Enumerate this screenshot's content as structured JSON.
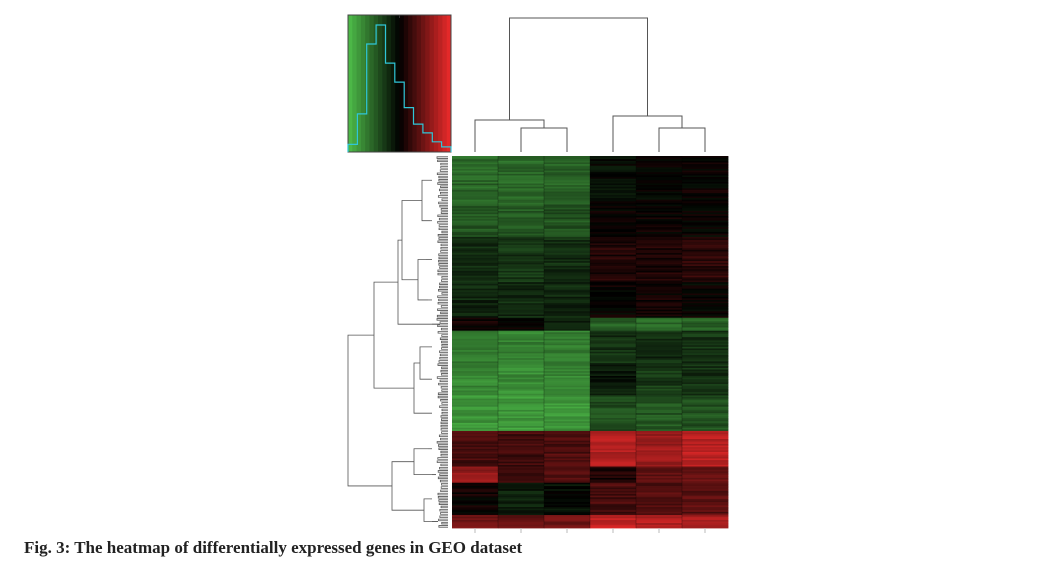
{
  "caption": "Fig. 3: The heatmap of differentially expressed genes in GEO dataset",
  "chart_data": {
    "type": "heatmap",
    "title": "",
    "xlabel": "",
    "ylabel": "",
    "color_scale": {
      "low": "#4fbf4a",
      "mid": "#000000",
      "high": "#ee2b2b"
    },
    "value_range": [
      -4,
      4
    ],
    "n_samples": 6,
    "column_dendrogram": {
      "root": [
        [
          0,
          [
            1,
            2
          ]
        ],
        [
          3,
          [
            4,
            5
          ]
        ]
      ]
    },
    "color_key_histogram": {
      "bins": 11,
      "counts": [
        0.06,
        0.3,
        0.85,
        1.0,
        0.7,
        0.55,
        0.35,
        0.22,
        0.15,
        0.08,
        0.04
      ]
    },
    "row_groups": [
      {
        "rows": 30,
        "values": [
          -2.1,
          -2.2,
          -2.0,
          -0.2,
          -0.1,
          0.1
        ]
      },
      {
        "rows": 20,
        "values": [
          -1.8,
          -1.9,
          -1.7,
          0.0,
          0.1,
          0.0
        ]
      },
      {
        "rows": 28,
        "values": [
          -1.0,
          -1.1,
          -0.9,
          0.6,
          0.5,
          0.7
        ]
      },
      {
        "rows": 22,
        "values": [
          -0.8,
          -0.9,
          -0.8,
          0.1,
          0.2,
          0.0
        ]
      },
      {
        "rows": 8,
        "values": [
          0.3,
          0.2,
          -0.6,
          -2.0,
          -2.2,
          -2.0
        ]
      },
      {
        "rows": 20,
        "values": [
          -2.6,
          -2.7,
          -2.6,
          -1.0,
          -0.9,
          -1.1
        ]
      },
      {
        "rows": 20,
        "values": [
          -2.8,
          -2.9,
          -2.8,
          -0.5,
          -1.2,
          -1.0
        ]
      },
      {
        "rows": 22,
        "values": [
          -3.1,
          -3.2,
          -3.1,
          -1.6,
          -1.8,
          -1.7
        ]
      },
      {
        "rows": 22,
        "values": [
          1.2,
          1.1,
          1.3,
          3.0,
          2.6,
          3.1
        ]
      },
      {
        "rows": 10,
        "values": [
          2.4,
          1.0,
          1.5,
          0.5,
          1.7,
          1.6
        ]
      },
      {
        "rows": 20,
        "values": [
          0.2,
          -0.6,
          -0.3,
          1.2,
          1.4,
          1.5
        ]
      },
      {
        "rows": 8,
        "values": [
          1.8,
          1.6,
          1.9,
          3.2,
          3.0,
          2.9
        ]
      }
    ]
  }
}
